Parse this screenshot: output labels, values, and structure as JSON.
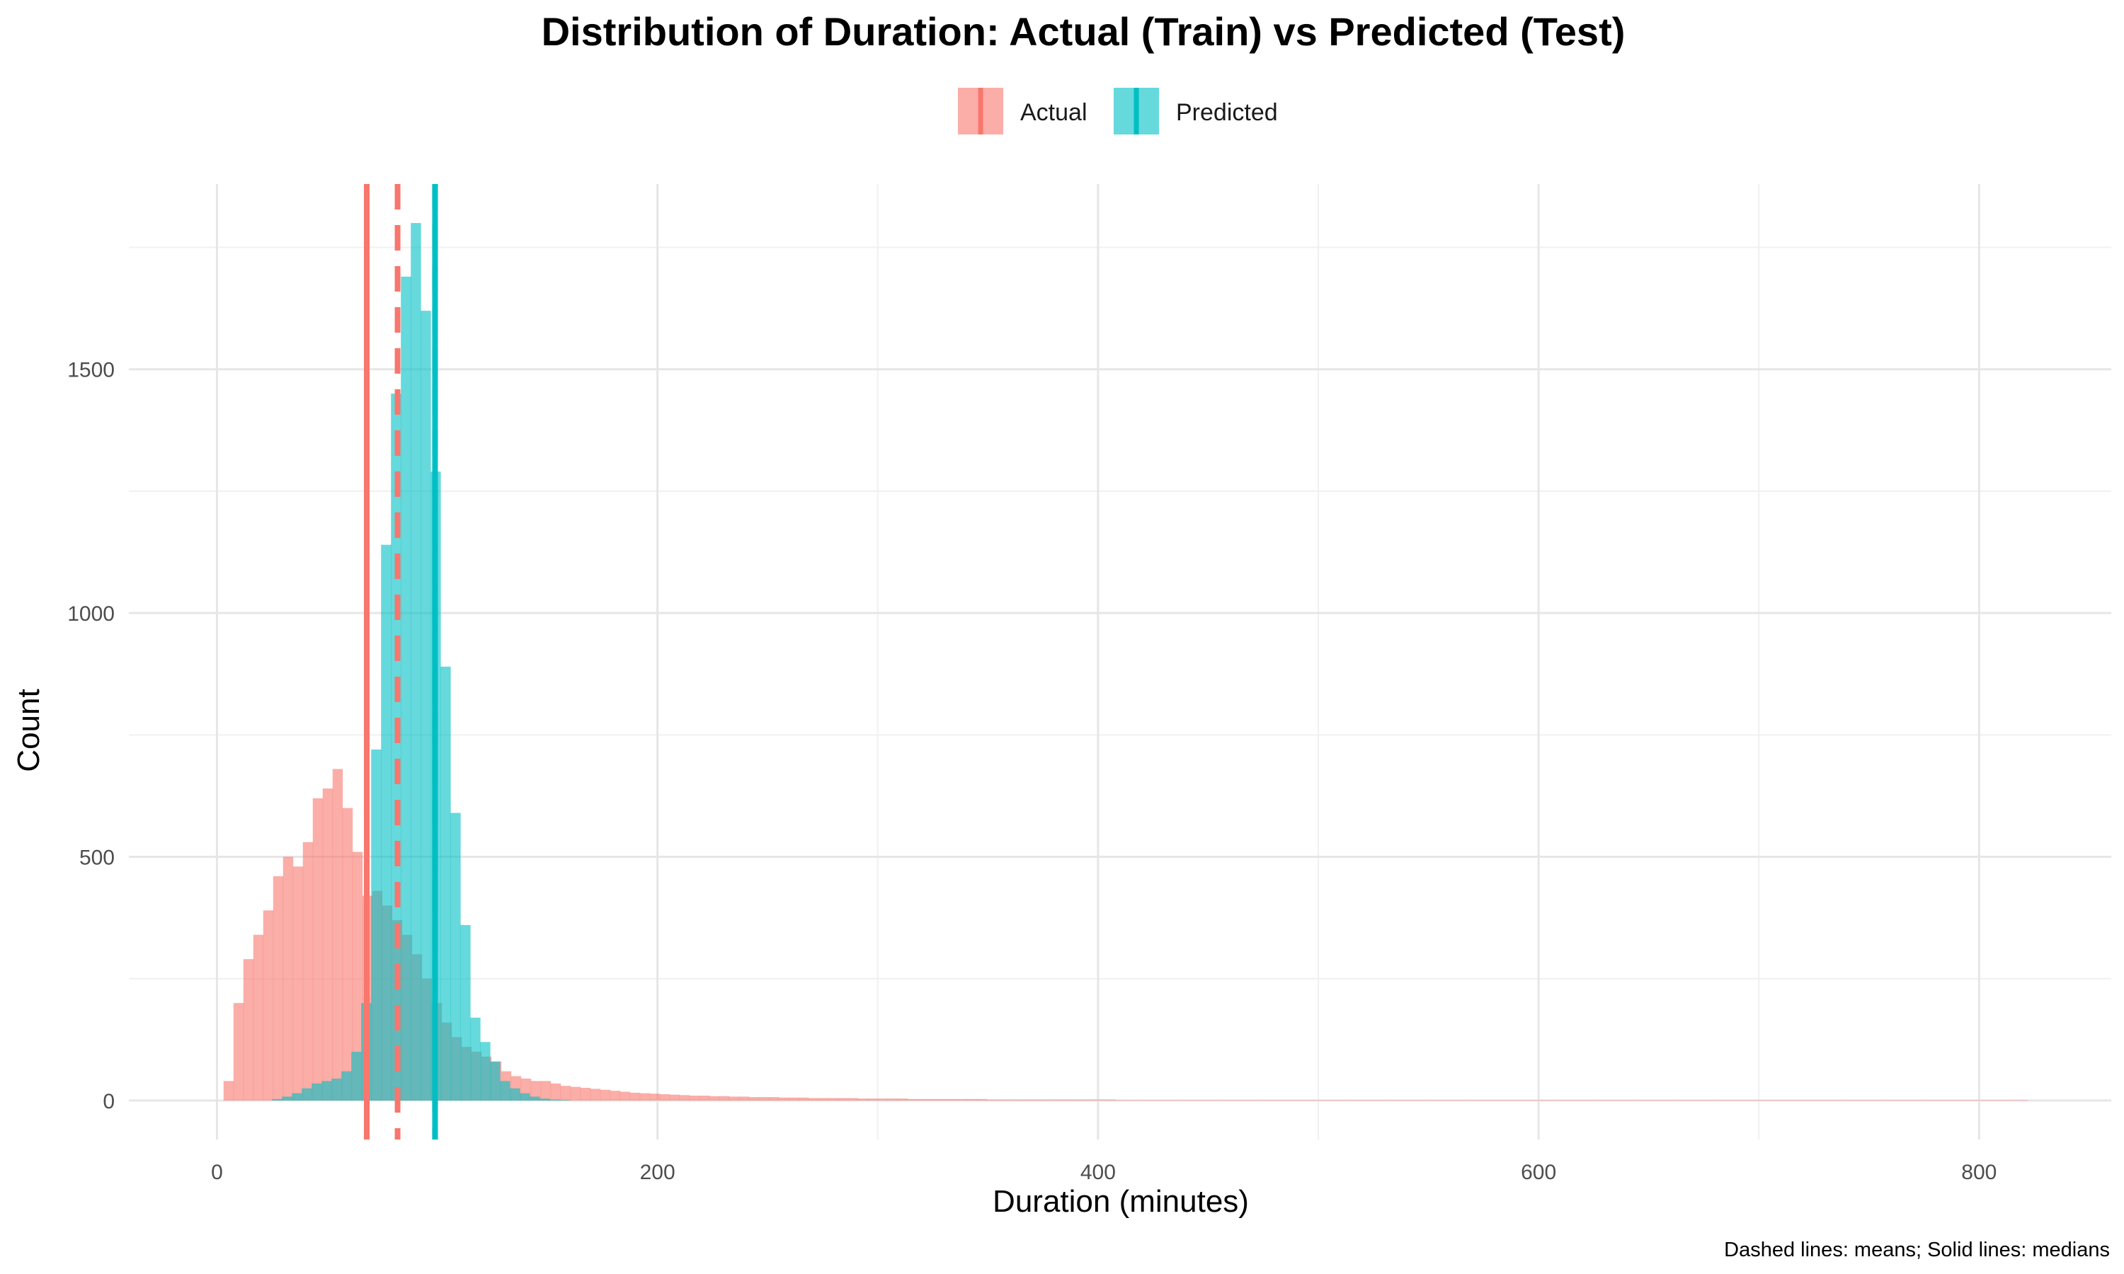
{
  "chart_data": {
    "type": "bar",
    "title": "Distribution of Duration: Actual (Train) vs Predicted (Test)",
    "xlabel": "Duration (minutes)",
    "ylabel": "Count",
    "caption": "Dashed lines: means; Solid lines: medians",
    "xlim": [
      -40,
      860
    ],
    "ylim": [
      -80,
      1880
    ],
    "x_ticks": [
      0,
      200,
      400,
      600,
      800
    ],
    "y_ticks": [
      0,
      500,
      1000,
      1500
    ],
    "x_tick_labels": [
      "0",
      "200",
      "400",
      "600",
      "800"
    ],
    "y_tick_labels": [
      "0",
      "500",
      "1000",
      "1500"
    ],
    "grid": true,
    "legend_position": "top",
    "bin_width": 4.5,
    "series": [
      {
        "name": "Actual",
        "color": "#F8766D",
        "start": 3,
        "counts": [
          40,
          200,
          290,
          340,
          390,
          460,
          500,
          480,
          530,
          620,
          640,
          680,
          600,
          510,
          420,
          430,
          400,
          370,
          340,
          300,
          250,
          200,
          160,
          130,
          110,
          100,
          90,
          80,
          60,
          50,
          45,
          40,
          40,
          35,
          30,
          28,
          26,
          24,
          22,
          20,
          18,
          16,
          15,
          14,
          13,
          12,
          11,
          10,
          10,
          9,
          9,
          8,
          8,
          7,
          7,
          7,
          6,
          6,
          6,
          5,
          5,
          5,
          5,
          5,
          4,
          4,
          4,
          4,
          4,
          3,
          3,
          3,
          3,
          3,
          3,
          3,
          3,
          2,
          2,
          2,
          2,
          2,
          2,
          2,
          2,
          2,
          2,
          2,
          2,
          2,
          1,
          1,
          1,
          1,
          1,
          1,
          1,
          1,
          1,
          1,
          1,
          1,
          1,
          1,
          1,
          1,
          1,
          1,
          1,
          1,
          1,
          1,
          1,
          1,
          1,
          1,
          1,
          1,
          1,
          1,
          1,
          1,
          1,
          1,
          1,
          1,
          1,
          1,
          1,
          1,
          1,
          1,
          1,
          1,
          1,
          1,
          1,
          1,
          1,
          1,
          1,
          1,
          1,
          1,
          1,
          1,
          1,
          1,
          1,
          1,
          1,
          1,
          1,
          1,
          1,
          1,
          1,
          1,
          1,
          1,
          1,
          1,
          1,
          1,
          1,
          1,
          1,
          1,
          1,
          1,
          1,
          1,
          1,
          1,
          1,
          1,
          1,
          1,
          1,
          1,
          1,
          1
        ],
        "mean": 82,
        "median": 68
      },
      {
        "name": "Predicted",
        "color": "#00BFC4",
        "start": 25,
        "counts": [
          3,
          8,
          15,
          25,
          35,
          40,
          45,
          60,
          100,
          200,
          720,
          1140,
          1450,
          1690,
          1800,
          1620,
          1290,
          890,
          590,
          360,
          170,
          120,
          80,
          40,
          25,
          15,
          8,
          4,
          2,
          1
        ],
        "mean": 99,
        "median": 99
      }
    ]
  },
  "legend": {
    "items": [
      {
        "label": "Actual",
        "color": "#F8766D"
      },
      {
        "label": "Predicted",
        "color": "#00BFC4"
      }
    ]
  }
}
